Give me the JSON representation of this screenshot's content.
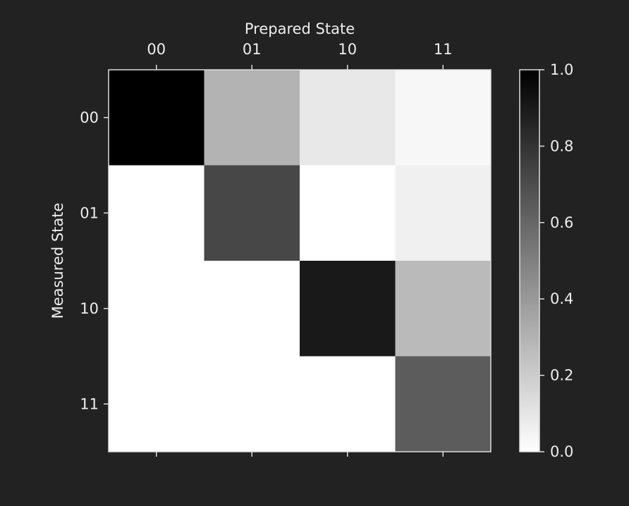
{
  "chart_data": {
    "type": "heatmap",
    "title": "",
    "xlabel": "Prepared State",
    "ylabel": "Measured State",
    "x_categories": [
      "00",
      "01",
      "10",
      "11"
    ],
    "y_categories": [
      "00",
      "01",
      "10",
      "11"
    ],
    "x_axis_position": "top",
    "colormap": "Greys",
    "values": [
      [
        1.0,
        0.3,
        0.09,
        0.03
      ],
      [
        0.0,
        0.72,
        0.0,
        0.06
      ],
      [
        0.0,
        0.0,
        0.9,
        0.27
      ],
      [
        0.0,
        0.0,
        0.0,
        0.64
      ]
    ],
    "colorbar": {
      "range": [
        0.0,
        1.0
      ],
      "ticks": [
        "0.0",
        "0.2",
        "0.4",
        "0.6",
        "0.8",
        "1.0"
      ]
    },
    "grid": false
  },
  "colors": {
    "background": "#222222",
    "text": "#eeeeee",
    "axis": "#dddddd"
  }
}
